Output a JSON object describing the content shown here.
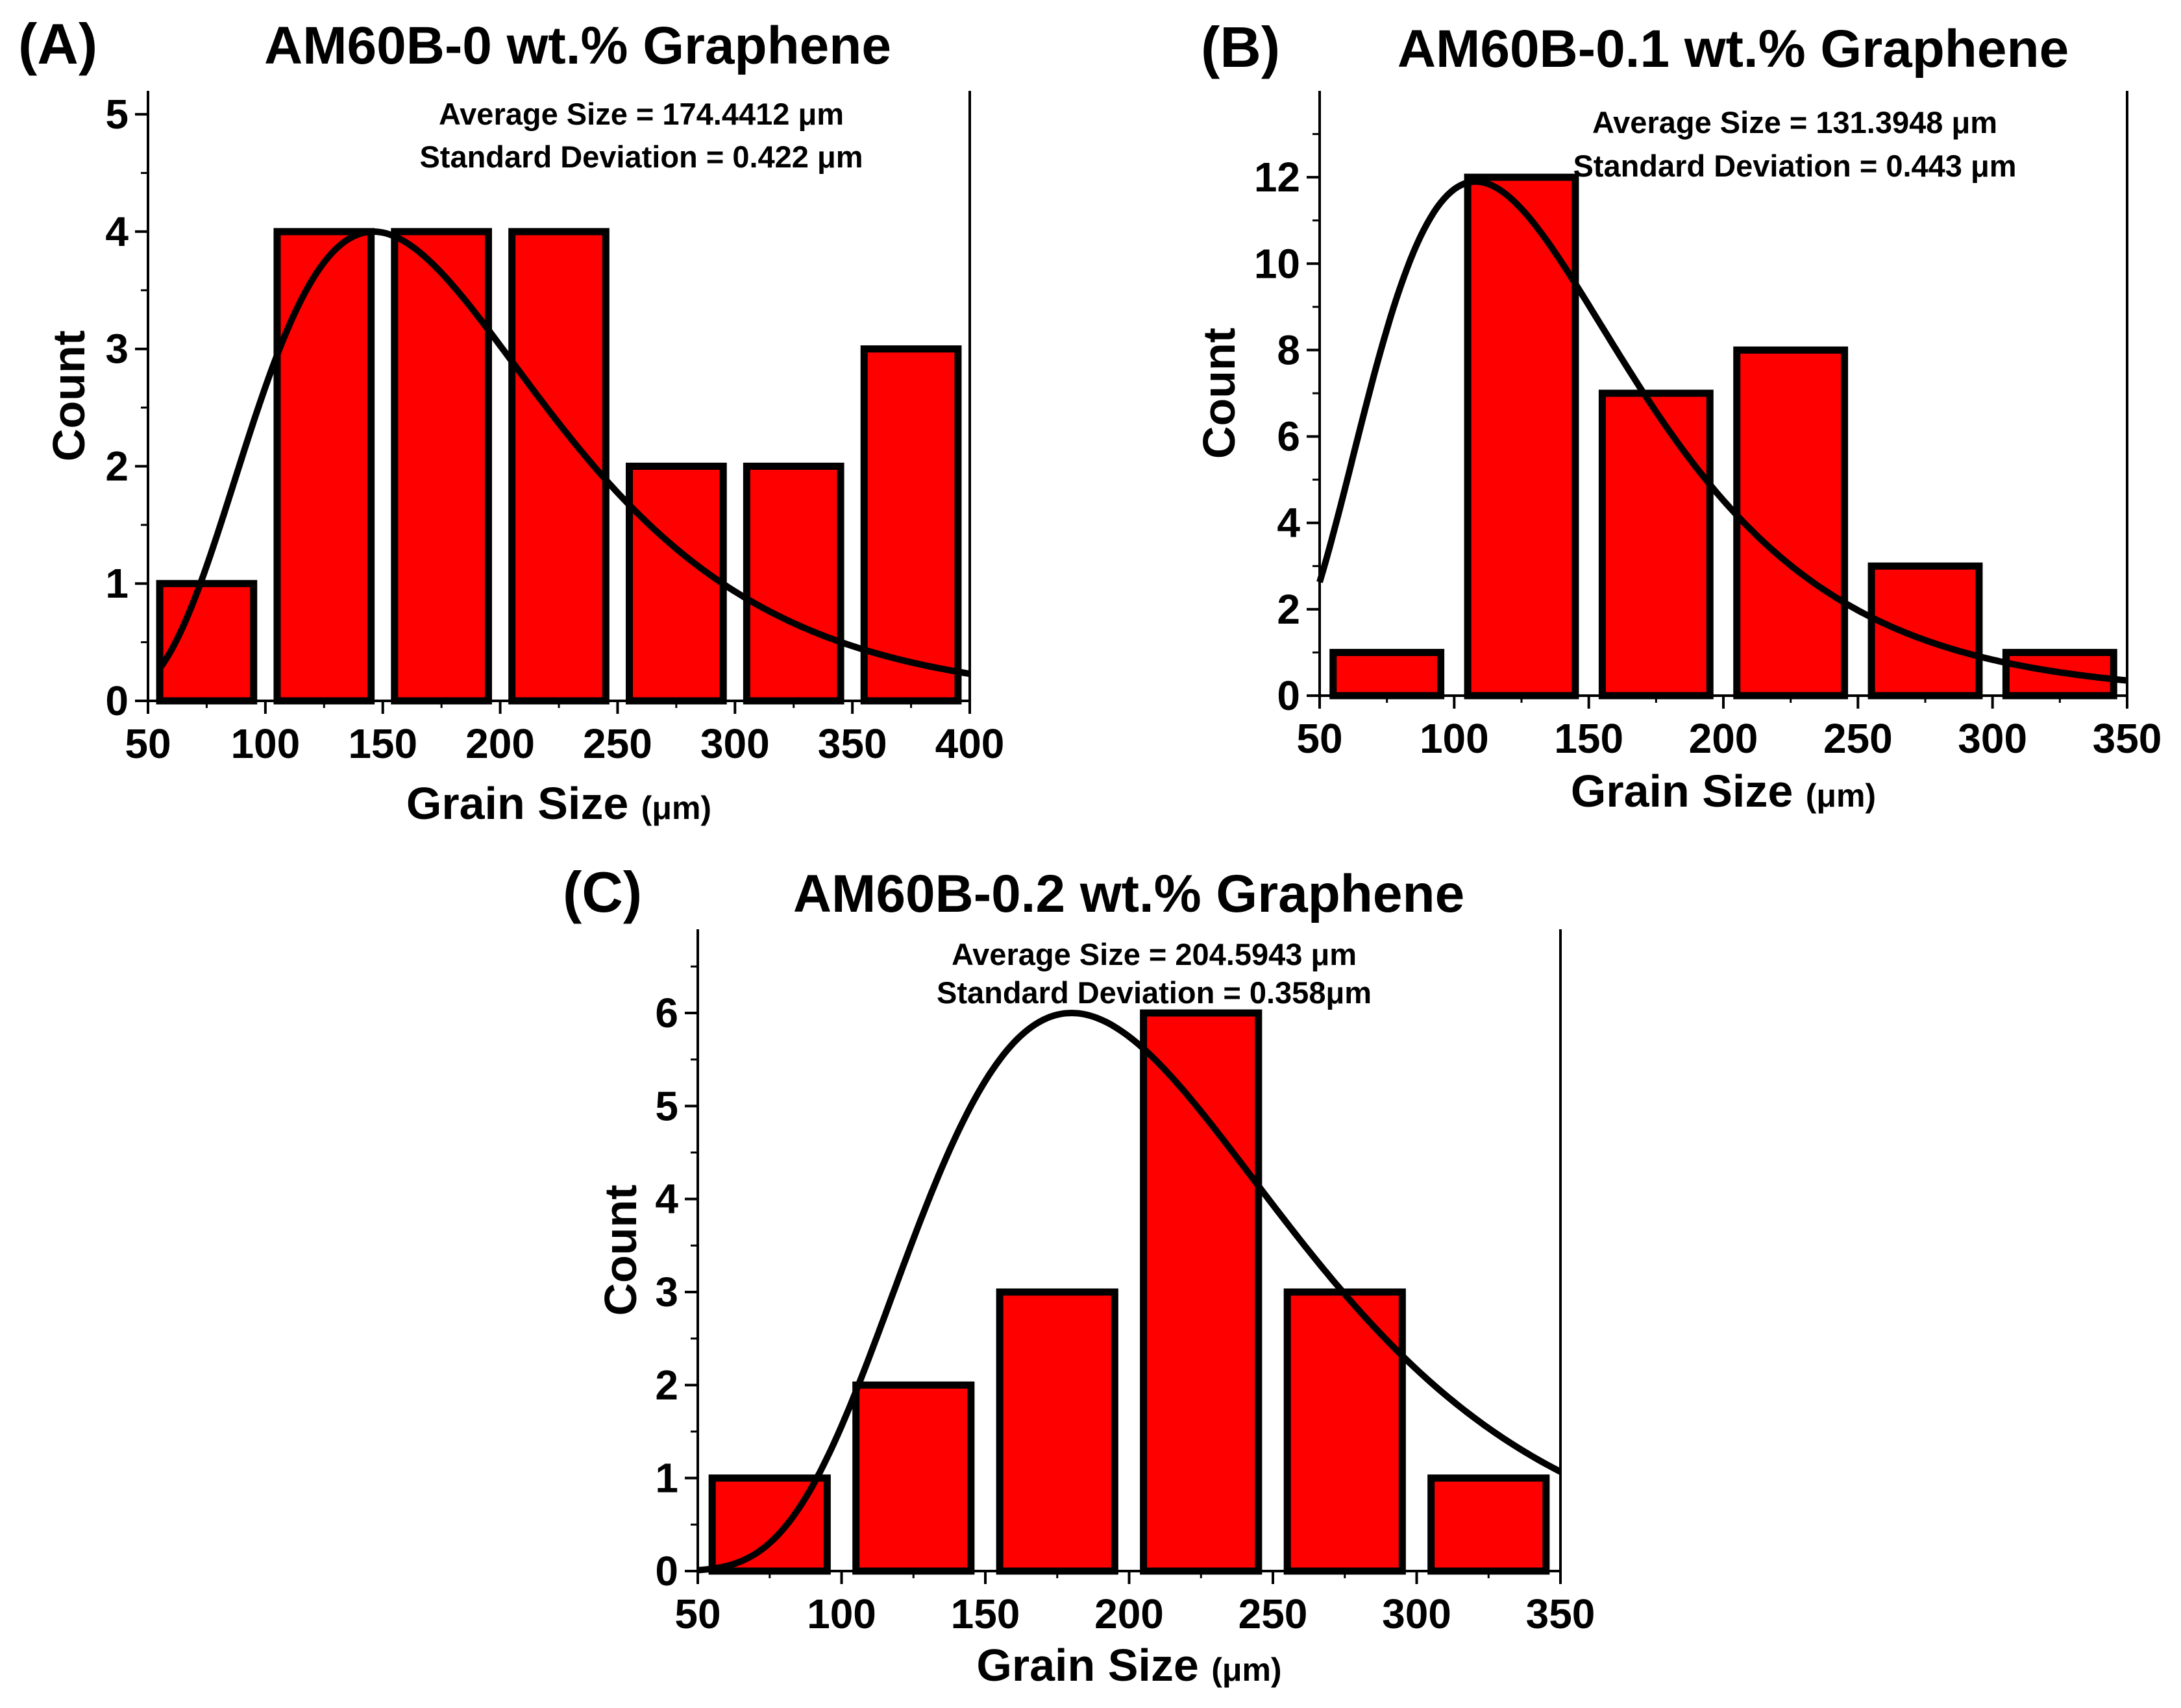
{
  "figure": {
    "background": "#ffffff",
    "bar_color": "#ff0000",
    "edge_color": "#000000",
    "curve_color": "#000000"
  },
  "chart_data": [
    {
      "panel": "(A)",
      "type": "bar",
      "title": "AM60B-0 wt.% Graphene",
      "xlabel": "Grain Size",
      "xunit": "(μm)",
      "ylabel": "Count",
      "xlim": [
        50,
        400
      ],
      "ylim": [
        0,
        5.2
      ],
      "xticks": [
        50,
        100,
        150,
        200,
        250,
        300,
        350,
        400
      ],
      "yticks": [
        0,
        1,
        2,
        3,
        4,
        5
      ],
      "bins": [
        [
          55,
          95
        ],
        [
          105,
          145
        ],
        [
          155,
          195
        ],
        [
          205,
          245
        ],
        [
          255,
          295
        ],
        [
          305,
          345
        ],
        [
          355,
          395
        ]
      ],
      "values": [
        1,
        4,
        4,
        4,
        2,
        2,
        3
      ],
      "fit": {
        "type": "lognormal",
        "median": 174.4412,
        "sigma": 0.422,
        "peak": 4.0,
        "x_range": [
          55,
          400
        ]
      },
      "annotations": [
        "Average Size = 174.4412 μm",
        "Standard Deviation  = 0.422 μm"
      ]
    },
    {
      "panel": "(B)",
      "type": "bar",
      "title": "AM60B-0.1 wt.% Graphene",
      "xlabel": "Grain Size",
      "xunit": "(μm)",
      "ylabel": "Count",
      "xlim": [
        50,
        350
      ],
      "ylim": [
        0,
        14
      ],
      "xticks": [
        50,
        100,
        150,
        200,
        250,
        300,
        350
      ],
      "yticks": [
        0,
        2,
        4,
        6,
        8,
        10,
        12
      ],
      "bins": [
        [
          55,
          95
        ],
        [
          105,
          145
        ],
        [
          155,
          195
        ],
        [
          205,
          245
        ],
        [
          255,
          295
        ],
        [
          305,
          345
        ]
      ],
      "values": [
        1,
        12,
        7,
        8,
        3,
        1
      ],
      "fit": {
        "type": "lognormal",
        "median": 131.3948,
        "sigma": 0.443,
        "peak": 11.9,
        "x_range": [
          50,
          350
        ]
      },
      "annotations": [
        "Average Size = 131.3948 μm",
        "Standard Deviation  = 0.443 μm"
      ]
    },
    {
      "panel": "(C)",
      "type": "bar",
      "title": "AM60B-0.2 wt.% Graphene",
      "xlabel": "Grain Size",
      "xunit": "(μm)",
      "ylabel": "Count",
      "xlim": [
        50,
        350
      ],
      "ylim": [
        0,
        6.9
      ],
      "xticks": [
        50,
        100,
        150,
        200,
        250,
        300,
        350
      ],
      "yticks": [
        0,
        1,
        2,
        3,
        4,
        5,
        6
      ],
      "bins": [
        [
          55,
          95
        ],
        [
          105,
          145
        ],
        [
          155,
          195
        ],
        [
          205,
          245
        ],
        [
          255,
          295
        ],
        [
          305,
          345
        ]
      ],
      "values": [
        1,
        2,
        3,
        6,
        3,
        1
      ],
      "fit": {
        "type": "lognormal",
        "median": 204.5943,
        "sigma": 0.358,
        "peak": 6.0,
        "x_range": [
          50,
          350
        ]
      },
      "annotations": [
        "Average Size = 204.5943 μm",
        "Standard Deviation  = 0.358μm"
      ]
    }
  ]
}
